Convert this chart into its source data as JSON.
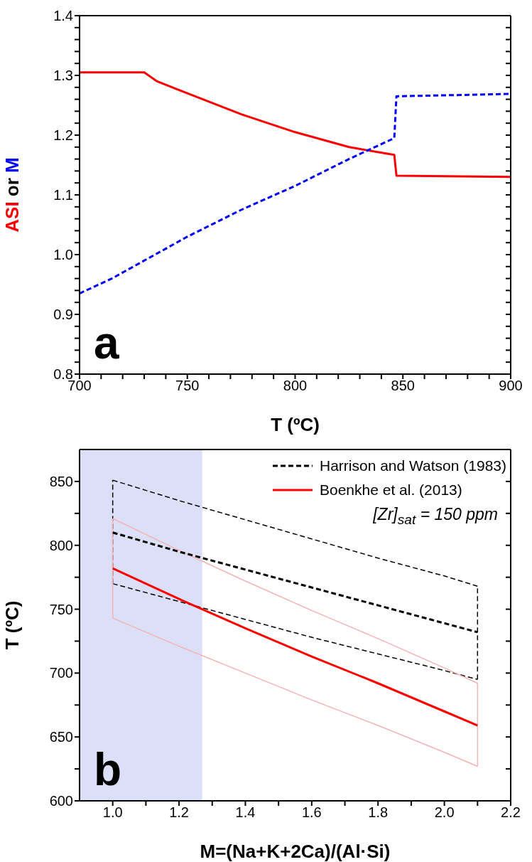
{
  "chart_data": [
    {
      "type": "line",
      "xlabel": "T (ºC)",
      "ylabel": "ASI or M",
      "xlim": [
        700,
        900
      ],
      "xticks": [
        700,
        {
          "value": 710,
          "label": null
        },
        {
          "value": 720,
          "label": null
        },
        {
          "value": 730,
          "label": null
        },
        {
          "value": 740,
          "label": null
        },
        750,
        {
          "value": 760,
          "label": null
        },
        {
          "value": 770,
          "label": null
        },
        {
          "value": 780,
          "label": null
        },
        {
          "value": 790,
          "label": null
        },
        800,
        {
          "value": 810,
          "label": null
        },
        {
          "value": 820,
          "label": null
        },
        {
          "value": 830,
          "label": null
        },
        {
          "value": 840,
          "label": null
        },
        850,
        {
          "value": 860,
          "label": null
        },
        {
          "value": 870,
          "label": null
        },
        {
          "value": 880,
          "label": null
        },
        {
          "value": 890,
          "label": null
        },
        900
      ],
      "ylim": [
        0.8,
        1.4
      ],
      "yticks": [
        0.8,
        {
          "value": 0.82,
          "label": null
        },
        {
          "value": 0.84,
          "label": null
        },
        {
          "value": 0.86,
          "label": null
        },
        {
          "value": 0.88,
          "label": null
        },
        0.9,
        {
          "value": 0.92,
          "label": null
        },
        {
          "value": 0.94,
          "label": null
        },
        {
          "value": 0.96,
          "label": null
        },
        {
          "value": 0.98,
          "label": null
        },
        {
          "value": 1.0,
          "label": "1.0"
        },
        {
          "value": 1.02,
          "label": null
        },
        {
          "value": 1.04,
          "label": null
        },
        {
          "value": 1.06,
          "label": null
        },
        {
          "value": 1.08,
          "label": null
        },
        1.1,
        {
          "value": 1.12,
          "label": null
        },
        {
          "value": 1.14,
          "label": null
        },
        {
          "value": 1.16,
          "label": null
        },
        {
          "value": 1.18,
          "label": null
        },
        1.2,
        {
          "value": 1.22,
          "label": null
        },
        {
          "value": 1.24,
          "label": null
        },
        {
          "value": 1.26,
          "label": null
        },
        {
          "value": 1.28,
          "label": null
        },
        1.3,
        {
          "value": 1.32,
          "label": null
        },
        {
          "value": 1.34,
          "label": null
        },
        {
          "value": 1.36,
          "label": null
        },
        {
          "value": 1.38,
          "label": null
        },
        1.4
      ],
      "grid": false,
      "legend": false,
      "marker": "none",
      "annotations": [
        "a"
      ],
      "series": [
        {
          "color": "#ff0000",
          "line_style": "solid",
          "x": [
            700,
            730,
            736,
            750,
            775,
            800,
            825,
            846,
            847,
            900
          ],
          "values": [
            1.305,
            1.305,
            1.29,
            1.27,
            1.235,
            1.205,
            1.18,
            1.167,
            1.132,
            1.13
          ]
        },
        {
          "color": "#0000ff",
          "line_style": "dashed",
          "x": [
            700,
            715,
            750,
            775,
            800,
            825,
            846,
            847,
            900
          ],
          "values": [
            0.935,
            0.96,
            1.03,
            1.075,
            1.115,
            1.16,
            1.195,
            1.265,
            1.269
          ]
        }
      ]
    },
    {
      "type": "line",
      "xlabel": "M=(Na+K+2Ca)/(Al·Si)",
      "ylabel": "T (ºC)",
      "xlim": [
        0.9,
        2.2
      ],
      "xticks": [
        {
          "value": 1.0,
          "label": "1.0"
        },
        {
          "value": 1.1,
          "label": null
        },
        1.2,
        {
          "value": 1.3,
          "label": null
        },
        1.4,
        {
          "value": 1.5,
          "label": null
        },
        1.6,
        {
          "value": 1.7,
          "label": null
        },
        1.8,
        {
          "value": 1.9,
          "label": null
        },
        {
          "value": 2.0,
          "label": "2.0"
        },
        {
          "value": 2.1,
          "label": null
        },
        2.2
      ],
      "ylim": [
        600,
        875
      ],
      "yticks": [
        600,
        {
          "value": 625,
          "label": null
        },
        650,
        {
          "value": 675,
          "label": null
        },
        700,
        {
          "value": 725,
          "label": null
        },
        750,
        {
          "value": 775,
          "label": null
        },
        800,
        {
          "value": 825,
          "label": null
        },
        850
      ],
      "grid": false,
      "legend": "top right",
      "marker": "none",
      "bands": [
        {
          "axis": "x",
          "from": 0.9,
          "to": 1.27,
          "color": "#dcdff8"
        }
      ],
      "annotations": [
        "[Zr]$_{sat}$ = 150 ppm",
        "b"
      ],
      "series": [
        {
          "color": "#000000",
          "line_style": "dashed",
          "x": [
            1.0,
            1.2,
            1.4,
            1.6,
            1.8,
            2.0,
            2.1
          ],
          "values": [
            851,
            835,
            820,
            805,
            790,
            776,
            768
          ]
        },
        {
          "color": "#000000",
          "line_style": "dashed",
          "x": [
            1.0,
            1.2,
            1.4,
            1.6,
            1.8,
            2.0,
            2.1
          ],
          "values": [
            770,
            756,
            742,
            728,
            715,
            702,
            695
          ]
        },
        {
          "color": "#000000",
          "line_style": "dashed",
          "x": [
            1.0,
            1.0
          ],
          "values": [
            770,
            851
          ]
        },
        {
          "color": "#000000",
          "line_style": "dashed",
          "x": [
            2.1,
            2.1
          ],
          "values": [
            695,
            768
          ]
        },
        {
          "color": "#f4b4b4",
          "line_style": "solid",
          "x": [
            1.0,
            1.2,
            1.4,
            1.6,
            1.8,
            2.0,
            2.1
          ],
          "values": [
            821,
            796,
            772,
            749,
            727,
            704,
            692
          ]
        },
        {
          "color": "#f4b4b4",
          "line_style": "solid",
          "x": [
            1.0,
            1.2,
            1.4,
            1.6,
            1.8,
            2.0,
            2.1
          ],
          "values": [
            743,
            721,
            700,
            679,
            659,
            638,
            627
          ]
        },
        {
          "color": "#f4b4b4",
          "line_style": "solid",
          "x": [
            1.0,
            1.0
          ],
          "values": [
            743,
            821
          ]
        },
        {
          "color": "#f4b4b4",
          "line_style": "solid",
          "x": [
            2.1,
            2.1
          ],
          "values": [
            627,
            692
          ]
        },
        {
          "name": "Harrison and Watson (1983)",
          "color": "#000000",
          "line_style": "dashed",
          "x": [
            1.0,
            1.2,
            1.4,
            1.6,
            1.8,
            2.0,
            2.1
          ],
          "values": [
            810,
            795,
            781,
            767,
            753,
            739,
            732
          ]
        },
        {
          "name": "Boenkhe et al. (2013)",
          "color": "#ff0000",
          "line_style": "solid",
          "x": [
            1.0,
            1.2,
            1.4,
            1.6,
            1.8,
            2.0,
            2.1
          ],
          "values": [
            782,
            758,
            735,
            713,
            692,
            670,
            659
          ]
        }
      ]
    }
  ]
}
